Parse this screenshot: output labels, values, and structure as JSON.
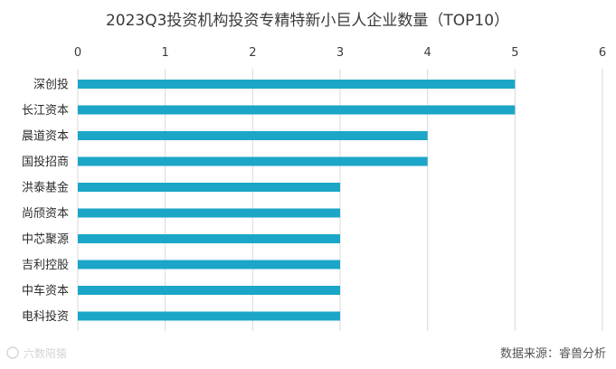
{
  "chart_data": {
    "type": "bar",
    "orientation": "horizontal",
    "title": "2023Q3投资机构投资专精特新小巨人企业数量（TOP10）",
    "categories": [
      "深创投",
      "长江资本",
      "晨道资本",
      "国投招商",
      "洪泰基金",
      "尚颀资本",
      "中芯聚源",
      "吉利控股",
      "中车资本",
      "电科投资"
    ],
    "values": [
      5,
      5,
      4,
      4,
      3,
      3,
      3,
      3,
      3,
      3
    ],
    "xlim": [
      0,
      6
    ],
    "xticks": [
      "0",
      "1",
      "2",
      "3",
      "4",
      "5",
      "6"
    ],
    "xaxis_position": "top",
    "grid": true,
    "bar_color": "#1BA6C7",
    "grid_color": "#D9D9D9"
  },
  "footer": {
    "source": "数据来源：睿兽分析",
    "watermark": "六数陪猿"
  }
}
